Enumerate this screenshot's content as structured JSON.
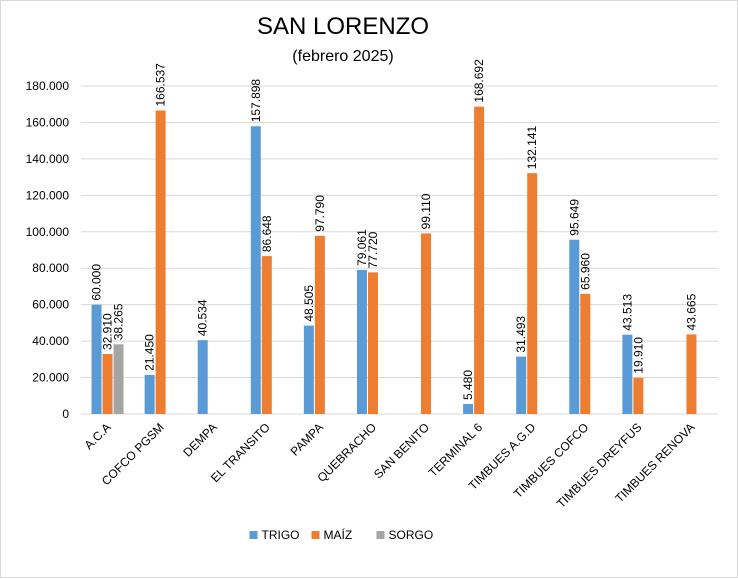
{
  "chart_data": {
    "type": "bar",
    "title": "SAN LORENZO",
    "subtitle": "(febrero 2025)",
    "categories": [
      "A.C.A",
      "COFCO PGSM",
      "DEMPA",
      "EL TRANSITO",
      "PAMPA",
      "QUEBRACHO",
      "SAN BENITO",
      "TERMINAL 6",
      "TIMBUES A.G.D",
      "TIMBUES COFCO",
      "TIMBUES DREYFUS",
      "TIMBUES RENOVA"
    ],
    "series": [
      {
        "name": "TRIGO",
        "color": "#5b9bd5",
        "values": [
          60000,
          21450,
          40534,
          157898,
          48505,
          79061,
          null,
          5480,
          31493,
          95649,
          43513,
          null
        ],
        "labels": [
          "60.000",
          "21.450",
          "40.534",
          "157.898",
          "48.505",
          "79.061",
          "",
          "5.480",
          "31.493",
          "95.649",
          "43.513",
          ""
        ]
      },
      {
        "name": "MAÍZ",
        "color": "#ed7d31",
        "values": [
          32910,
          166537,
          null,
          86648,
          97790,
          77720,
          99110,
          168692,
          132141,
          65960,
          19910,
          43665
        ],
        "labels": [
          "32.910",
          "166.537",
          "",
          "86.648",
          "97.790",
          "77.720",
          "99.110",
          "168.692",
          "132.141",
          "65.960",
          "19.910",
          "43.665"
        ]
      },
      {
        "name": "SORGO",
        "color": "#a5a5a5",
        "values": [
          38265,
          null,
          null,
          null,
          null,
          null,
          null,
          null,
          null,
          null,
          null,
          null
        ],
        "labels": [
          "38.265",
          "",
          "",
          "",
          "",
          "",
          "",
          "",
          "",
          "",
          "",
          ""
        ]
      }
    ],
    "ylim": [
      0,
      180000
    ],
    "yticks": [
      0,
      20000,
      40000,
      60000,
      80000,
      100000,
      120000,
      140000,
      160000,
      180000
    ],
    "ytick_labels": [
      "0",
      "20.000",
      "40.000",
      "60.000",
      "80.000",
      "100.000",
      "120.000",
      "140.000",
      "160.000",
      "180.000"
    ],
    "grid": true,
    "legend_position": "bottom"
  }
}
